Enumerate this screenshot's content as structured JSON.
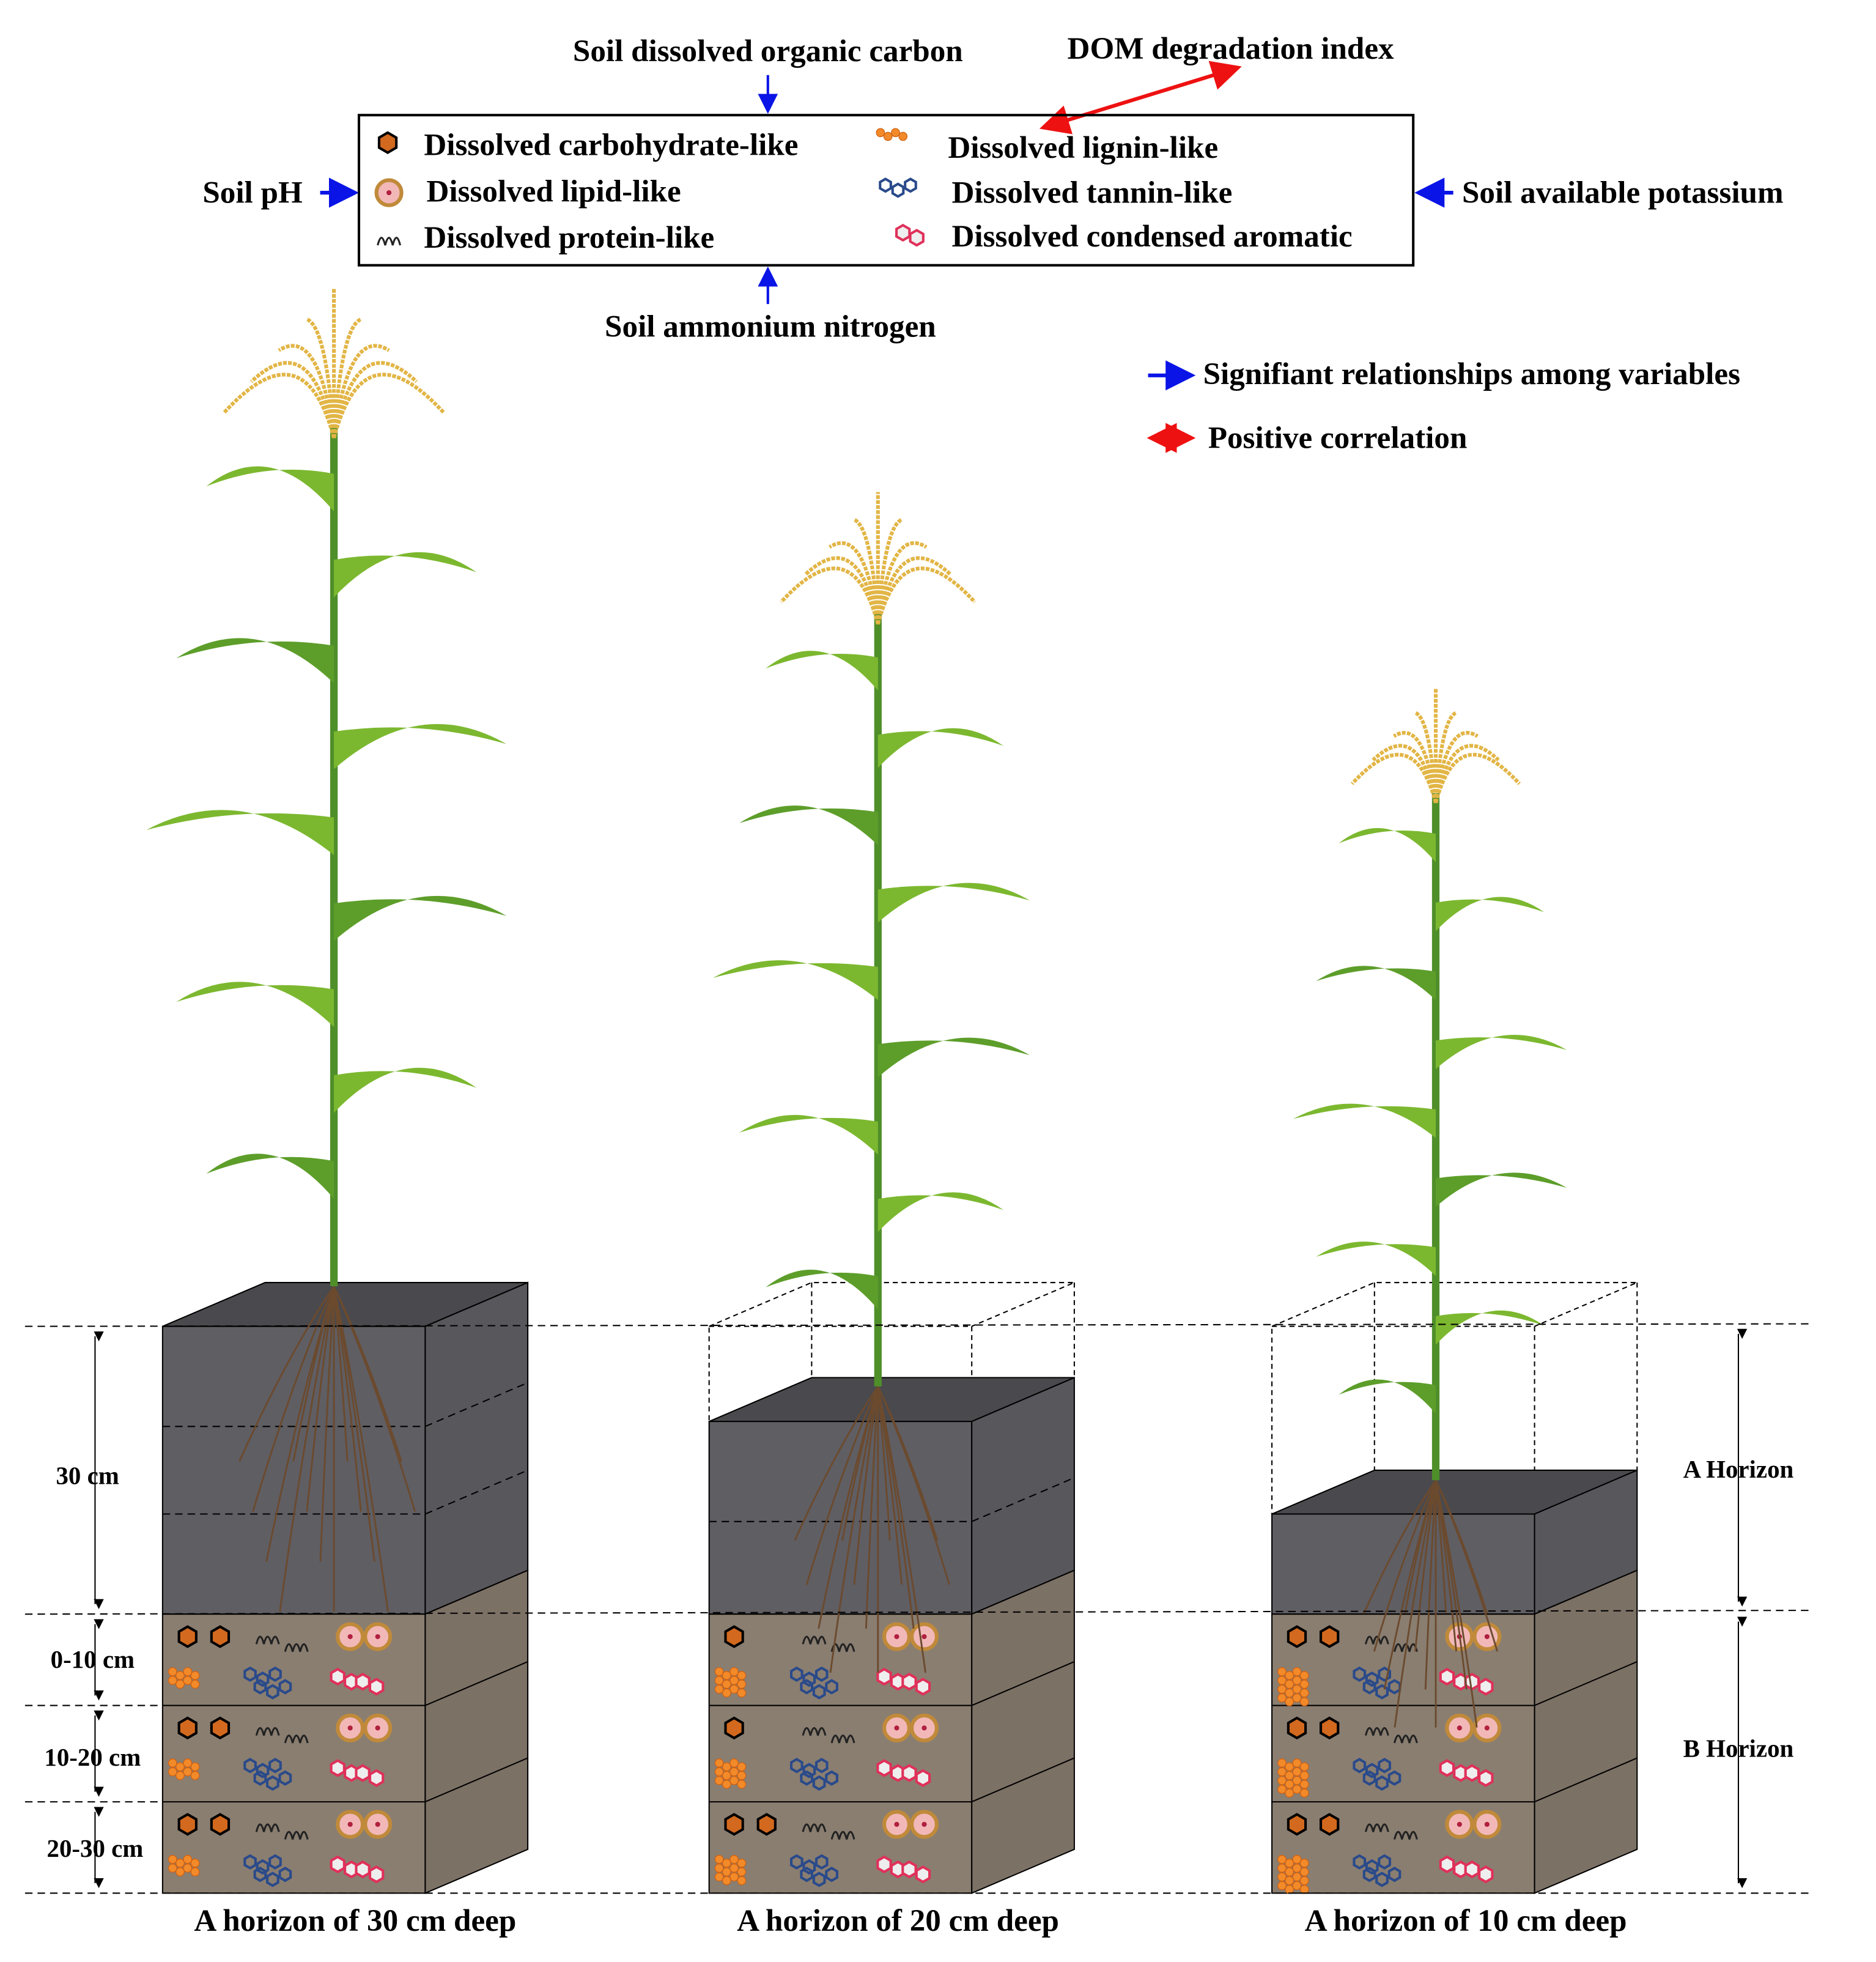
{
  "drivers": {
    "top": "Soil dissolved organic carbon",
    "top_right": "DOM degradation index",
    "left": "Soil pH",
    "right": "Soil available potassium",
    "bottom": "Soil ammonium nitrogen"
  },
  "legend_items": [
    {
      "label": "Dissolved carbohydrate-like",
      "icon": "carbohydrate-hexagon-icon"
    },
    {
      "label": "Dissolved lipid-like",
      "icon": "lipid-circle-icon"
    },
    {
      "label": "Dissolved protein-like",
      "icon": "protein-helix-icon"
    },
    {
      "label": "Dissolved lignin-like",
      "icon": "lignin-chain-icon"
    },
    {
      "label": "Dissolved tannin-like",
      "icon": "tannin-ring-icon"
    },
    {
      "label": "Dissolved condensed aromatic",
      "icon": "aromatic-ring-icon"
    }
  ],
  "arrow_legend": {
    "blue": "Signifiant relationships among variables",
    "red": "Positive correlation"
  },
  "depth_labels": [
    "30 cm",
    "0-10 cm",
    "10-20 cm",
    "20-30 cm"
  ],
  "horizon_labels": {
    "a": "A Horizon",
    "b": "B Horizon"
  },
  "captions": [
    "A horizon of 30 cm  deep",
    "A horizon of 20 cm deep",
    "A horizon of 10 cm  deep"
  ],
  "colors": {
    "blue_arrow": "#0a14e6",
    "red_arrow": "#ee1111",
    "a_horizon": "#5f5e63",
    "b_horizon": "#8a7e71",
    "leaf": "#7cb82f",
    "tassel": "#e2b545",
    "root": "#6b4a2e"
  }
}
